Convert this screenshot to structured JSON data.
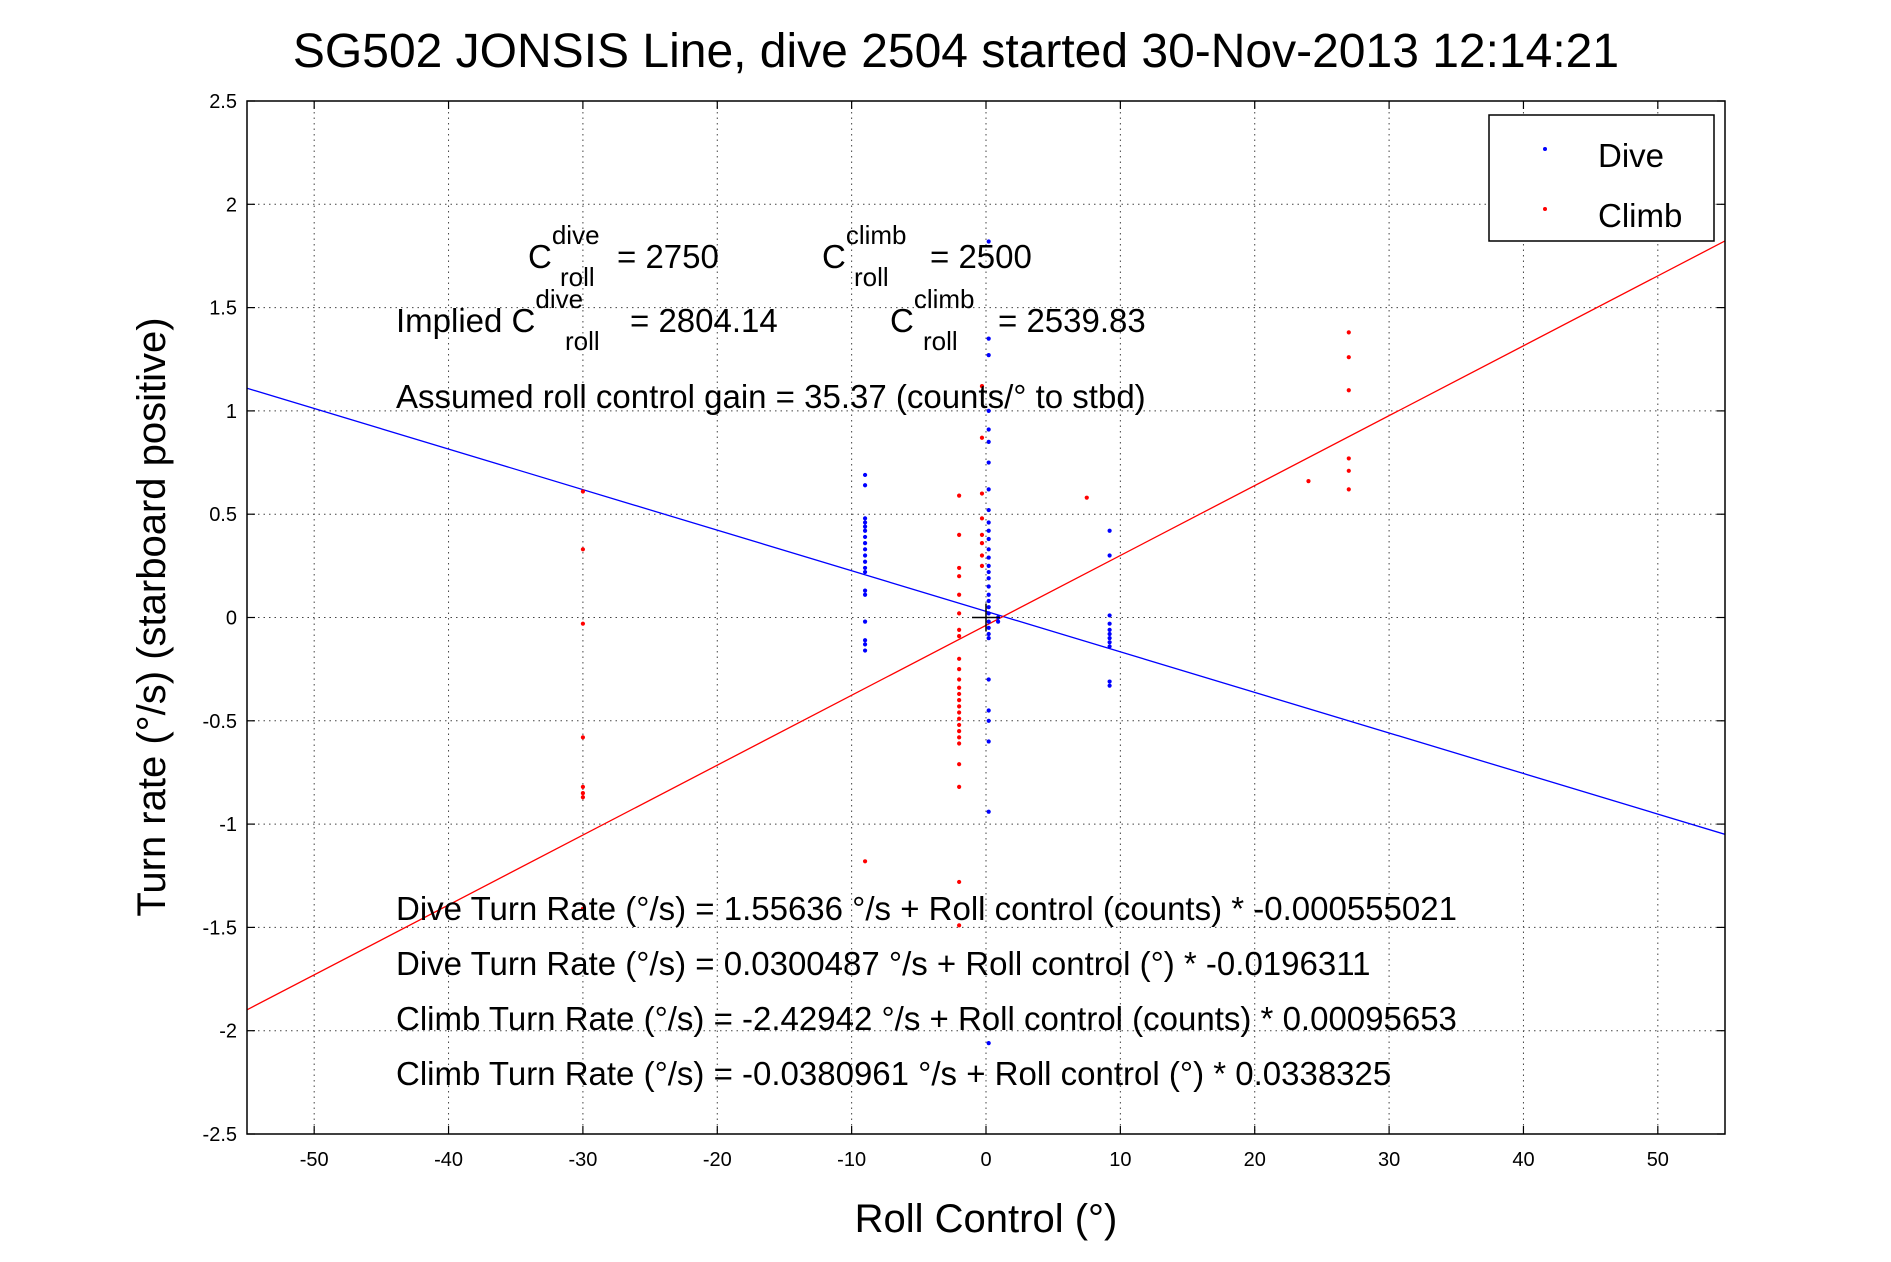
{
  "chart_data": {
    "type": "scatter",
    "title": "SG502 JONSIS Line, dive 2504 started 30-Nov-2013 12:14:21",
    "xlabel": "Roll Control (°)",
    "ylabel": "Turn rate (°/s)  (starboard positive)",
    "xlim": [
      -55,
      55
    ],
    "ylim": [
      -2.5,
      2.5
    ],
    "xticks": [
      -50,
      -40,
      -30,
      -20,
      -10,
      0,
      10,
      20,
      30,
      40,
      50
    ],
    "yticks": [
      -2.5,
      -2,
      -1.5,
      -1,
      -0.5,
      0,
      0.5,
      1,
      1.5,
      2,
      2.5
    ],
    "xtick_labels": [
      "-50",
      "-40",
      "-30",
      "-20",
      "-10",
      "0",
      "10",
      "20",
      "30",
      "40",
      "50"
    ],
    "ytick_labels": [
      "-2.5",
      "-2",
      "-1.5",
      "-1",
      "-0.5",
      "0",
      "0.5",
      "1",
      "1.5",
      "2",
      "2.5"
    ],
    "grid": true,
    "legend": {
      "position": "top-right",
      "entries": [
        "Dive",
        "Climb"
      ]
    },
    "colors": {
      "dive": "#0000ff",
      "climb": "#ff0000"
    },
    "series": [
      {
        "name": "Dive",
        "points": [
          [
            -9,
            0.69
          ],
          [
            -9,
            0.64
          ],
          [
            -9,
            0.48
          ],
          [
            -9,
            0.46
          ],
          [
            -9,
            0.44
          ],
          [
            -9,
            0.42
          ],
          [
            -9,
            0.39
          ],
          [
            -9,
            0.36
          ],
          [
            -9,
            0.33
          ],
          [
            -9,
            0.3
          ],
          [
            -9,
            0.27
          ],
          [
            -9,
            0.24
          ],
          [
            -9,
            0.22
          ],
          [
            -9,
            0.13
          ],
          [
            -9,
            0.11
          ],
          [
            -9,
            -0.02
          ],
          [
            -9,
            -0.11
          ],
          [
            -9,
            -0.13
          ],
          [
            -9,
            -0.16
          ],
          [
            0.2,
            1.82
          ],
          [
            0.2,
            1.35
          ],
          [
            0.2,
            1.27
          ],
          [
            0.2,
            1.0
          ],
          [
            0.2,
            0.91
          ],
          [
            0.2,
            0.85
          ],
          [
            0.2,
            0.75
          ],
          [
            0.2,
            0.62
          ],
          [
            0.2,
            0.52
          ],
          [
            0.2,
            0.46
          ],
          [
            0.2,
            0.42
          ],
          [
            0.2,
            0.38
          ],
          [
            0.2,
            0.33
          ],
          [
            0.2,
            0.29
          ],
          [
            0.2,
            0.25
          ],
          [
            0.2,
            0.22
          ],
          [
            0.2,
            0.19
          ],
          [
            0.2,
            0.15
          ],
          [
            0.2,
            0.11
          ],
          [
            0.2,
            0.08
          ],
          [
            0.2,
            0.05
          ],
          [
            0.2,
            0.02
          ],
          [
            0.2,
            -0.02
          ],
          [
            0.2,
            -0.05
          ],
          [
            0.2,
            -0.08
          ],
          [
            0.2,
            -0.1
          ],
          [
            0.2,
            -0.3
          ],
          [
            0.2,
            -0.45
          ],
          [
            0.2,
            -0.5
          ],
          [
            0.2,
            -0.6
          ],
          [
            0.2,
            -0.94
          ],
          [
            0.2,
            -2.06
          ],
          [
            0.9,
            0.0
          ],
          [
            0.9,
            -0.02
          ],
          [
            9.2,
            0.42
          ],
          [
            9.2,
            0.3
          ],
          [
            9.2,
            0.01
          ],
          [
            9.2,
            -0.03
          ],
          [
            9.2,
            -0.06
          ],
          [
            9.2,
            -0.08
          ],
          [
            9.2,
            -0.1
          ],
          [
            9.2,
            -0.12
          ],
          [
            9.2,
            -0.14
          ],
          [
            9.2,
            -0.31
          ],
          [
            9.2,
            -0.33
          ]
        ]
      },
      {
        "name": "Climb",
        "points": [
          [
            -30,
            0.61
          ],
          [
            -30,
            0.33
          ],
          [
            -30,
            -0.03
          ],
          [
            -30,
            -0.58
          ],
          [
            -30,
            -0.82
          ],
          [
            -30,
            -0.85
          ],
          [
            -30,
            -0.87
          ],
          [
            -30,
            -1.41
          ],
          [
            -9,
            -1.18
          ],
          [
            -2,
            0.59
          ],
          [
            -2,
            0.4
          ],
          [
            -2,
            0.24
          ],
          [
            -2,
            0.2
          ],
          [
            -2,
            0.11
          ],
          [
            -2,
            0.02
          ],
          [
            -2,
            -0.06
          ],
          [
            -2,
            -0.09
          ],
          [
            -2,
            -0.2
          ],
          [
            -2,
            -0.25
          ],
          [
            -2,
            -0.3
          ],
          [
            -2,
            -0.34
          ],
          [
            -2,
            -0.37
          ],
          [
            -2,
            -0.4
          ],
          [
            -2,
            -0.43
          ],
          [
            -2,
            -0.46
          ],
          [
            -2,
            -0.49
          ],
          [
            -2,
            -0.52
          ],
          [
            -2,
            -0.55
          ],
          [
            -2,
            -0.58
          ],
          [
            -2,
            -0.61
          ],
          [
            -2,
            -0.71
          ],
          [
            -2,
            -0.82
          ],
          [
            -2,
            -1.28
          ],
          [
            -2,
            -1.49
          ],
          [
            -0.3,
            1.12
          ],
          [
            -0.3,
            0.87
          ],
          [
            -0.3,
            0.6
          ],
          [
            -0.3,
            0.48
          ],
          [
            -0.3,
            0.4
          ],
          [
            -0.3,
            0.36
          ],
          [
            -0.3,
            0.3
          ],
          [
            -0.3,
            0.25
          ],
          [
            7.5,
            0.58
          ],
          [
            24,
            0.66
          ],
          [
            27,
            1.38
          ],
          [
            27,
            1.26
          ],
          [
            27,
            1.1
          ],
          [
            27,
            0.77
          ],
          [
            27,
            0.71
          ],
          [
            27,
            0.62
          ]
        ]
      }
    ],
    "fit_lines": [
      {
        "name": "Dive",
        "intercept": 0.0300487,
        "slope": -0.0196311
      },
      {
        "name": "Climb",
        "intercept": -0.0380961,
        "slope": 0.0338325
      }
    ],
    "center_marker": [
      0,
      0
    ],
    "annotations": {
      "c_dive_base": "C",
      "c_dive_sup": "dive",
      "c_dive_sub": "roll",
      "c_dive_val": " = 2750",
      "c_climb_base": "C",
      "c_climb_sup": "climb",
      "c_climb_sub": "roll",
      "c_climb_val": " = 2500",
      "implied_prefix": "Implied C",
      "implied_dive_sup": "dive",
      "implied_dive_sub": "roll",
      "implied_dive_val": " = 2804.14",
      "implied_climb_base": "C",
      "implied_climb_sup": "climb",
      "implied_climb_sub": "roll",
      "implied_climb_val": " = 2539.83",
      "gain": "Assumed roll control gain = 35.37 (counts/° to stbd)",
      "eq1": "Dive Turn Rate (°/s) = 1.55636 °/s + Roll control (counts) * -0.000555021",
      "eq2": "Dive Turn Rate (°/s) = 0.0300487 °/s + Roll control (°) * -0.0196311",
      "eq3": "Climb Turn Rate (°/s) = -2.42942 °/s + Roll control (counts) * 0.00095653",
      "eq4": "Climb Turn Rate (°/s) = -0.0380961 °/s + Roll control (°) * 0.0338325"
    }
  }
}
